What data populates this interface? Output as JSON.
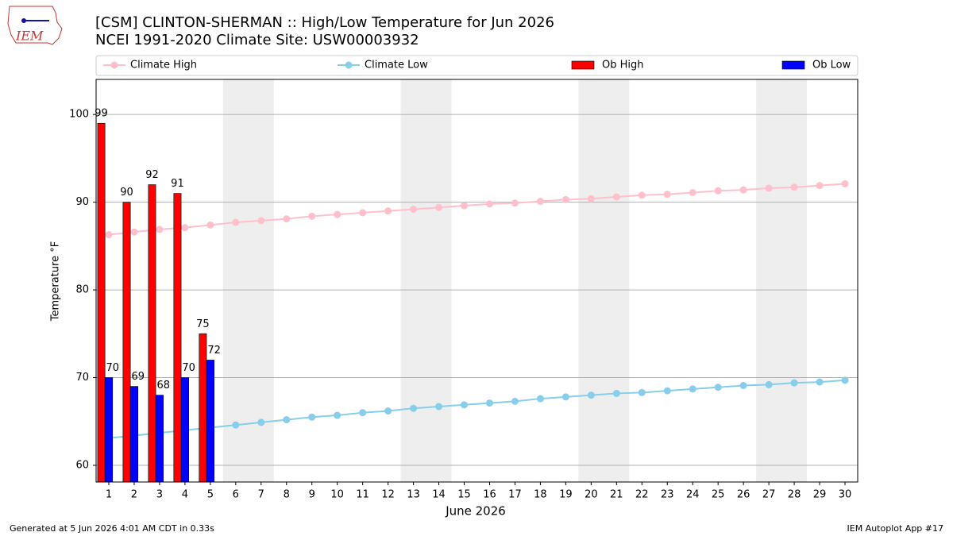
{
  "chart_data": {
    "type": "bar_line",
    "logo_text": "IEM",
    "title": "[CSM] CLINTON-SHERMAN :: High/Low Temperature for Jun 2026",
    "subtitle": "NCEI 1991-2020 Climate Site: USW00003932",
    "y_label": "Temperature °F",
    "x_label": "June 2026",
    "footer_left": "Generated at 5 Jun 2026 4:01 AM CDT in 0.33s",
    "footer_right": "IEM Autoplot App #17",
    "x": [
      1,
      2,
      3,
      4,
      5,
      6,
      7,
      8,
      9,
      10,
      11,
      12,
      13,
      14,
      15,
      16,
      17,
      18,
      19,
      20,
      21,
      22,
      23,
      24,
      25,
      26,
      27,
      28,
      29,
      30
    ],
    "xlim": [
      0.5,
      30.5
    ],
    "xticks": [
      1,
      2,
      3,
      4,
      5,
      6,
      7,
      8,
      9,
      10,
      11,
      12,
      13,
      14,
      15,
      16,
      17,
      18,
      19,
      20,
      21,
      22,
      23,
      24,
      25,
      26,
      27,
      28,
      29,
      30
    ],
    "ylim": [
      58.1,
      104
    ],
    "yticks": [
      60,
      70,
      80,
      90,
      100
    ],
    "grid": true,
    "shaded_ranges": [
      [
        5.5,
        7.5
      ],
      [
        12.5,
        14.5
      ],
      [
        19.5,
        21.5
      ],
      [
        26.5,
        28.5
      ]
    ],
    "shade_color": "#eeeeee",
    "series": [
      {
        "name": "Climate High",
        "kind": "line",
        "color": "#ffc0cb",
        "values": [
          86.3,
          86.6,
          86.9,
          87.1,
          87.4,
          87.7,
          87.9,
          88.1,
          88.4,
          88.6,
          88.8,
          89.0,
          89.2,
          89.4,
          89.6,
          89.8,
          89.9,
          90.1,
          90.3,
          90.4,
          90.6,
          90.8,
          90.9,
          91.1,
          91.3,
          91.4,
          91.6,
          91.7,
          91.9,
          92.1
        ]
      },
      {
        "name": "Climate Low",
        "kind": "line",
        "color": "#87ceeb",
        "values": [
          63.1,
          63.4,
          63.7,
          64.0,
          64.3,
          64.6,
          64.9,
          65.2,
          65.5,
          65.7,
          66.0,
          66.2,
          66.5,
          66.7,
          66.9,
          67.1,
          67.3,
          67.6,
          67.8,
          68.0,
          68.2,
          68.3,
          68.5,
          68.7,
          68.9,
          69.1,
          69.2,
          69.4,
          69.5,
          69.7
        ]
      },
      {
        "name": "Ob High",
        "kind": "bar",
        "color": "#ff0000",
        "values": [
          99,
          90,
          92,
          91,
          75,
          null,
          null,
          null,
          null,
          null,
          null,
          null,
          null,
          null,
          null,
          null,
          null,
          null,
          null,
          null,
          null,
          null,
          null,
          null,
          null,
          null,
          null,
          null,
          null,
          null
        ]
      },
      {
        "name": "Ob Low",
        "kind": "bar",
        "color": "#0000ff",
        "values": [
          70,
          69,
          68,
          70,
          72,
          null,
          null,
          null,
          null,
          null,
          null,
          null,
          null,
          null,
          null,
          null,
          null,
          null,
          null,
          null,
          null,
          null,
          null,
          null,
          null,
          null,
          null,
          null,
          null,
          null
        ]
      }
    ]
  }
}
